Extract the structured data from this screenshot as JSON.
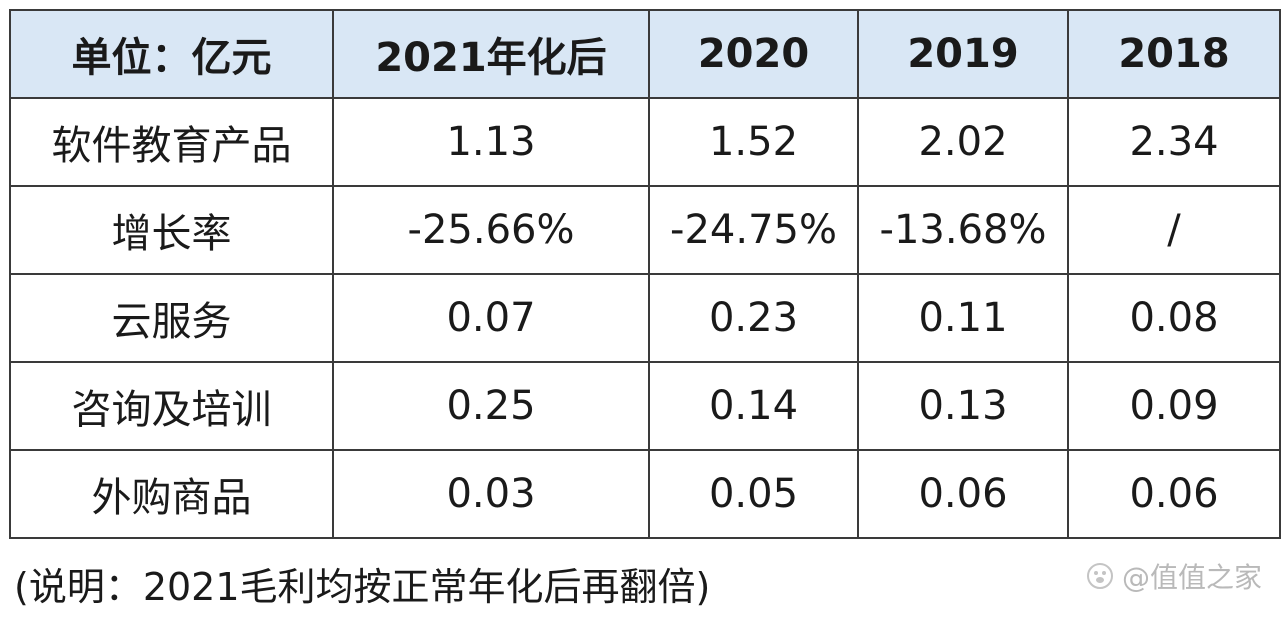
{
  "table": {
    "headers": [
      "单位：亿元",
      "2021年化后",
      "2020",
      "2019",
      "2018"
    ],
    "rows": [
      {
        "label": "软件教育产品",
        "values": [
          "1.13",
          "1.52",
          "2.02",
          "2.34"
        ]
      },
      {
        "label": "增长率",
        "values": [
          "-25.66%",
          "-24.75%",
          "-13.68%",
          "/"
        ]
      },
      {
        "label": "云服务",
        "values": [
          "0.07",
          "0.23",
          "0.11",
          "0.08"
        ]
      },
      {
        "label": "咨询及培训",
        "values": [
          "0.25",
          "0.14",
          "0.13",
          "0.09"
        ]
      },
      {
        "label": "外购商品",
        "values": [
          "0.03",
          "0.05",
          "0.06",
          "0.06"
        ]
      }
    ]
  },
  "note": "(说明：2021毛利均按正常年化后再翻倍)",
  "watermark": {
    "text": "@值值之家",
    "icon": "paw-logo-icon"
  },
  "colors": {
    "header_bg": "#d9e7f5",
    "border": "#3a3a3a"
  }
}
